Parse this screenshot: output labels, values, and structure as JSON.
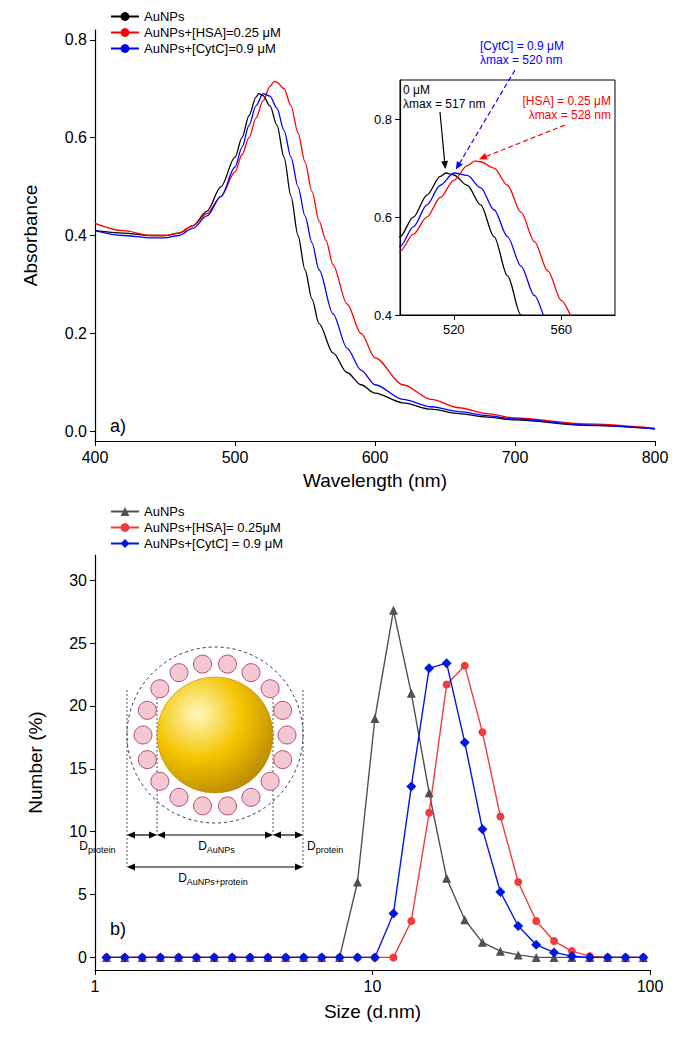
{
  "chart_data": [
    {
      "type": "line",
      "title": "a)",
      "x_label": "Wavelength (nm)",
      "y_label": "Absorbance",
      "xlim": [
        400,
        800
      ],
      "xticks": [
        400,
        500,
        600,
        700,
        800
      ],
      "ylim": [
        -0.02,
        0.82
      ],
      "yticks": [
        {
          "value": 0,
          "label": "0.0"
        },
        0.2,
        0.4,
        0.6,
        0.8
      ],
      "grid": false,
      "legend": "upper left",
      "series": [
        {
          "name": "AuNPs",
          "color": "#000000",
          "x": [
            400,
            420,
            440,
            450,
            460,
            470,
            480,
            490,
            500,
            505,
            510,
            515,
            517,
            520,
            525,
            530,
            535,
            540,
            545,
            550,
            555,
            560,
            570,
            580,
            590,
            600,
            620,
            640,
            660,
            680,
            700,
            750,
            800
          ],
          "values": [
            0.41,
            0.405,
            0.4,
            0.4,
            0.405,
            0.42,
            0.45,
            0.5,
            0.56,
            0.6,
            0.645,
            0.683,
            0.69,
            0.686,
            0.665,
            0.625,
            0.56,
            0.48,
            0.4,
            0.33,
            0.27,
            0.22,
            0.16,
            0.12,
            0.095,
            0.078,
            0.058,
            0.045,
            0.036,
            0.029,
            0.023,
            0.012,
            0.005
          ]
        },
        {
          "name": "AuNPs+[HSA]=0.25 μM",
          "color": "#ff0000",
          "x": [
            400,
            420,
            440,
            450,
            460,
            470,
            480,
            490,
            500,
            505,
            510,
            515,
            520,
            525,
            528,
            530,
            535,
            540,
            545,
            550,
            555,
            560,
            565,
            570,
            580,
            590,
            600,
            620,
            640,
            660,
            680,
            700,
            750,
            800
          ],
          "values": [
            0.425,
            0.41,
            0.4,
            0.4,
            0.405,
            0.42,
            0.445,
            0.48,
            0.53,
            0.565,
            0.6,
            0.64,
            0.675,
            0.705,
            0.715,
            0.713,
            0.7,
            0.665,
            0.61,
            0.55,
            0.49,
            0.43,
            0.39,
            0.34,
            0.26,
            0.2,
            0.15,
            0.095,
            0.065,
            0.048,
            0.036,
            0.027,
            0.015,
            0.006
          ]
        },
        {
          "name": "AuNPs+[CytC]=0.9 μM",
          "color": "#0000ff",
          "x": [
            400,
            420,
            440,
            450,
            460,
            470,
            480,
            490,
            500,
            505,
            510,
            515,
            520,
            525,
            530,
            535,
            540,
            545,
            550,
            555,
            560,
            570,
            580,
            590,
            600,
            620,
            640,
            660,
            680,
            700,
            750,
            800
          ],
          "values": [
            0.41,
            0.4,
            0.395,
            0.395,
            0.4,
            0.415,
            0.44,
            0.48,
            0.54,
            0.58,
            0.625,
            0.665,
            0.69,
            0.685,
            0.66,
            0.615,
            0.56,
            0.5,
            0.44,
            0.385,
            0.33,
            0.24,
            0.17,
            0.125,
            0.095,
            0.065,
            0.05,
            0.04,
            0.032,
            0.025,
            0.013,
            0.005
          ]
        }
      ],
      "inset": {
        "type": "line",
        "xlim": [
          500,
          580
        ],
        "xticks": [
          520,
          560
        ],
        "ylim": [
          0.4,
          0.88
        ],
        "yticks": [
          0.4,
          0.6,
          0.8
        ],
        "annotations": [
          {
            "text": [
              "0 μM",
              "λmax = 517 nm"
            ],
            "x": 517,
            "y": 0.69,
            "color": "#000000",
            "line_style": "solid"
          },
          {
            "text": [
              "[CytC] = 0.9 μM",
              "λmax = 520 nm"
            ],
            "x": 520,
            "y": 0.69,
            "color": "#0000ff",
            "line_style": "dashed"
          },
          {
            "text": [
              "[HSA] = 0.25 μM",
              "λmax = 528 nm"
            ],
            "x": 528,
            "y": 0.715,
            "color": "#ff0000",
            "line_style": "dashed"
          }
        ]
      }
    },
    {
      "type": "line",
      "title": "b)",
      "x_label": "Size (d.nm)",
      "y_label": "Number (%)",
      "log": "x",
      "xlim": [
        1,
        100
      ],
      "xticks": [
        1,
        10,
        100
      ],
      "ylim": [
        -1,
        32
      ],
      "yticks": [
        0,
        5,
        10,
        15,
        20,
        25,
        30
      ],
      "grid": false,
      "legend": "upper left",
      "series": [
        {
          "name": "AuNPs",
          "color": "#505050",
          "marker": "triangle",
          "x": [
            1.1,
            1.28,
            1.48,
            1.72,
            2.0,
            2.32,
            2.69,
            3.12,
            3.62,
            4.2,
            4.87,
            5.65,
            6.56,
            7.61,
            8.83,
            10.2,
            11.9,
            13.8,
            16.0,
            18.5,
            21.5,
            24.9,
            28.9,
            33.5,
            38.9,
            45.1,
            52.3,
            60.7,
            70.4,
            81.6,
            94.6
          ],
          "values": [
            0,
            0,
            0,
            0,
            0,
            0,
            0,
            0,
            0,
            0,
            0,
            0,
            0,
            0,
            6,
            19,
            27.6,
            21,
            13.1,
            6.3,
            3,
            1.2,
            0.5,
            0.2,
            0,
            0,
            0,
            0,
            0,
            0,
            0
          ]
        },
        {
          "name": "AuNPs+[HSA]= 0.25μM",
          "color": "#f03c3c",
          "marker": "circle",
          "x": [
            1.1,
            1.28,
            1.48,
            1.72,
            2.0,
            2.32,
            2.69,
            3.12,
            3.62,
            4.2,
            4.87,
            5.65,
            6.56,
            7.61,
            8.83,
            10.2,
            11.9,
            13.8,
            16.0,
            18.5,
            21.5,
            24.9,
            28.9,
            33.5,
            38.9,
            45.1,
            52.3,
            60.7,
            70.4,
            81.6,
            94.6
          ],
          "values": [
            0,
            0,
            0,
            0,
            0,
            0,
            0,
            0,
            0,
            0,
            0,
            0,
            0,
            0,
            0,
            0,
            0,
            2.9,
            11.5,
            21.7,
            23.2,
            17.9,
            11.2,
            6,
            2.9,
            1.3,
            0.5,
            0.1,
            0,
            0,
            0
          ]
        },
        {
          "name": "AuNPs+[CytC] = 0.9 μM",
          "color": "#0018e0",
          "marker": "diamond",
          "x": [
            1.1,
            1.28,
            1.48,
            1.72,
            2.0,
            2.32,
            2.69,
            3.12,
            3.62,
            4.2,
            4.87,
            5.65,
            6.56,
            7.61,
            8.83,
            10.2,
            11.9,
            13.8,
            16.0,
            18.5,
            21.5,
            24.9,
            28.9,
            33.5,
            38.9,
            45.1,
            52.3,
            60.7,
            70.4,
            81.6,
            94.6
          ],
          "values": [
            0,
            0,
            0,
            0,
            0,
            0,
            0,
            0,
            0,
            0,
            0,
            0,
            0,
            0,
            0,
            0,
            3.5,
            13.6,
            23,
            23.4,
            17.1,
            10.2,
            5.2,
            2.5,
            1,
            0.4,
            0.1,
            0,
            0,
            0,
            0
          ]
        }
      ],
      "schematic": {
        "labels": [
          "Dprotein",
          "DAuNPs",
          "Dprotein",
          "DAuNPs+protein"
        ]
      }
    }
  ]
}
